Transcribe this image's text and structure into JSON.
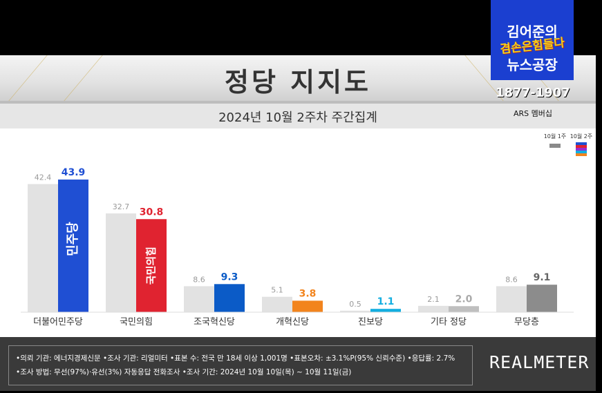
{
  "overlay": {
    "logo_line1": "김어준의",
    "logo_line2": "겸손은힘들다",
    "logo_line3": "뉴스공장",
    "phone": "1877-1907",
    "ars": "ARS 멤버십"
  },
  "chart_data": {
    "type": "bar",
    "title": "정당 지지도",
    "subtitle": "2024년 10월 2주차 주간집계",
    "categories": [
      "더불어민주당",
      "국민의힘",
      "조국혁신당",
      "개혁신당",
      "진보당",
      "기타 정당",
      "무당층"
    ],
    "series": [
      {
        "name": "10월 1주",
        "values": [
          42.4,
          32.7,
          8.6,
          5.1,
          0.5,
          2.1,
          8.6
        ],
        "color": "#e2e2e2"
      },
      {
        "name": "10월 2주",
        "values": [
          43.9,
          30.8,
          9.3,
          3.8,
          1.1,
          2.0,
          9.1
        ],
        "colors": [
          "#1f4fd3",
          "#e02330",
          "#0b5bc7",
          "#f2841d",
          "#12aee0",
          "#bfbfbf",
          "#8c8c8c"
        ]
      }
    ],
    "value_label_colors": [
      "#1f4fd3",
      "#e02330",
      "#0b5bc7",
      "#f2841d",
      "#12aee0",
      "#aaaaaa",
      "#666666"
    ],
    "bar_labels": [
      "민주당",
      "국민의힘"
    ],
    "legend": {
      "placement": "top-right",
      "labels": [
        "10월 1주",
        "10월 2주"
      ]
    },
    "ylim": [
      0,
      48
    ],
    "grid": false
  },
  "footer": {
    "line1": "•의뢰 기관: 에너지경제신문  •조사 기관: 리얼미터 •표본 수: 전국 만 18세 이상 1,001명 •표본오차: ±3.1%P(95% 신뢰수준) •응답률: 2.7%",
    "line2": "•조사 방법: 무선(97%)·유선(3%) 자동응답 전화조사 •조사 기간: 2024년 10월 10일(목) ~ 10월 11일(금)",
    "brand": "REALMETER"
  }
}
